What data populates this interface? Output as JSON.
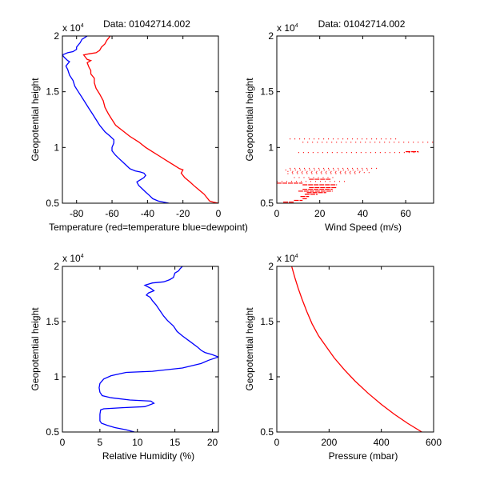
{
  "figure": {
    "background": "#ffffff",
    "colors": {
      "temperature": "#ff0000",
      "dewpoint": "#0000ff",
      "wind": "#ff0000",
      "humidity": "#0000ff",
      "pressure": "#ff0000"
    }
  },
  "chart_data": [
    {
      "id": "temperature",
      "type": "line",
      "title": "Data: 01042714.002",
      "xlabel": "Temperature (red=temperature blue=dewpoint)",
      "ylabel": "Geopotential height",
      "y_multiplier": "x 10",
      "y_multiplier_exp": "4",
      "xlim": [
        -88,
        0
      ],
      "ylim": [
        0.5,
        2
      ],
      "xticks": [
        -80,
        -60,
        -40,
        -20,
        0
      ],
      "xtick_labels": [
        "-80",
        "-60",
        "-40",
        "-20",
        "0"
      ],
      "yticks": [
        0.5,
        1,
        1.5,
        2
      ],
      "ytick_labels": [
        "0.5",
        "1",
        "1.5",
        "2"
      ],
      "grid": false,
      "series": [
        {
          "name": "temperature",
          "color": "#ff0000",
          "points": [
            [
              0,
              0.5
            ],
            [
              -3,
              0.51
            ],
            [
              -5,
              0.52
            ],
            [
              -6,
              0.54
            ],
            [
              -8,
              0.58
            ],
            [
              -11,
              0.62
            ],
            [
              -14,
              0.66
            ],
            [
              -16,
              0.69
            ],
            [
              -19,
              0.73
            ],
            [
              -21,
              0.77
            ],
            [
              -20,
              0.8
            ],
            [
              -22,
              0.81
            ],
            [
              -25,
              0.84
            ],
            [
              -29,
              0.88
            ],
            [
              -33,
              0.92
            ],
            [
              -37,
              0.96
            ],
            [
              -41,
              1.0
            ],
            [
              -45,
              1.05
            ],
            [
              -50,
              1.1
            ],
            [
              -54,
              1.15
            ],
            [
              -58,
              1.2
            ],
            [
              -60,
              1.25
            ],
            [
              -62,
              1.3
            ],
            [
              -64,
              1.36
            ],
            [
              -65,
              1.42
            ],
            [
              -67,
              1.48
            ],
            [
              -69,
              1.53
            ],
            [
              -70,
              1.58
            ],
            [
              -70,
              1.62
            ],
            [
              -72,
              1.66
            ],
            [
              -72,
              1.69
            ],
            [
              -73,
              1.72
            ],
            [
              -74,
              1.76
            ],
            [
              -72,
              1.78
            ],
            [
              -74,
              1.79
            ],
            [
              -75,
              1.81
            ],
            [
              -76,
              1.83
            ],
            [
              -73,
              1.84
            ],
            [
              -69,
              1.85
            ],
            [
              -67,
              1.87
            ],
            [
              -66,
              1.9
            ],
            [
              -64,
              1.93
            ],
            [
              -63,
              1.96
            ],
            [
              -62,
              1.98
            ],
            [
              -61,
              2.0
            ]
          ]
        },
        {
          "name": "dewpoint",
          "color": "#0000ff",
          "points": [
            [
              -28,
              0.5
            ],
            [
              -31,
              0.51
            ],
            [
              -34,
              0.52
            ],
            [
              -37,
              0.54
            ],
            [
              -39,
              0.57
            ],
            [
              -41,
              0.6
            ],
            [
              -43,
              0.63
            ],
            [
              -45,
              0.66
            ],
            [
              -46,
              0.69
            ],
            [
              -45,
              0.7
            ],
            [
              -42,
              0.73
            ],
            [
              -41,
              0.75
            ],
            [
              -42,
              0.77
            ],
            [
              -44,
              0.78
            ],
            [
              -47,
              0.79
            ],
            [
              -50,
              0.81
            ],
            [
              -52,
              0.84
            ],
            [
              -54,
              0.87
            ],
            [
              -56,
              0.9
            ],
            [
              -58,
              0.93
            ],
            [
              -60,
              0.97
            ],
            [
              -60,
              1.0
            ],
            [
              -59,
              1.04
            ],
            [
              -59,
              1.07
            ],
            [
              -61,
              1.1
            ],
            [
              -64,
              1.14
            ],
            [
              -67,
              1.2
            ],
            [
              -69,
              1.25
            ],
            [
              -71,
              1.3
            ],
            [
              -73,
              1.35
            ],
            [
              -75,
              1.4
            ],
            [
              -77,
              1.45
            ],
            [
              -79,
              1.5
            ],
            [
              -81,
              1.55
            ],
            [
              -82,
              1.6
            ],
            [
              -84,
              1.65
            ],
            [
              -85,
              1.7
            ],
            [
              -86,
              1.73
            ],
            [
              -85,
              1.75
            ],
            [
              -84,
              1.77
            ],
            [
              -85,
              1.78
            ],
            [
              -87,
              1.81
            ],
            [
              -88,
              1.83
            ],
            [
              -85,
              1.85
            ],
            [
              -82,
              1.86
            ],
            [
              -80,
              1.88
            ],
            [
              -80,
              1.9
            ],
            [
              -78,
              1.94
            ],
            [
              -77,
              1.97
            ],
            [
              -75,
              1.99
            ],
            [
              -74,
              2.0
            ]
          ]
        }
      ]
    },
    {
      "id": "wind",
      "type": "scatter",
      "title": "Data: 01042714.002",
      "xlabel": "Wind Speed (m/s)",
      "ylabel": "Geopotential height",
      "y_multiplier": "x 10",
      "y_multiplier_exp": "4",
      "xlim": [
        0,
        73
      ],
      "ylim": [
        0.5,
        2
      ],
      "xticks": [
        0,
        20,
        40,
        60
      ],
      "xtick_labels": [
        "0",
        "20",
        "40",
        "60"
      ],
      "yticks": [
        0.5,
        1,
        1.5,
        2
      ],
      "ytick_labels": [
        "0.5",
        "1",
        "1.5",
        "2"
      ],
      "grid": false,
      "series": [
        {
          "name": "wind-speed",
          "color": "#ff0000",
          "segments": [
            [
              6,
              57,
              1.077
            ],
            [
              12,
              73,
              1.047
            ],
            [
              10,
              66,
              0.955
            ],
            [
              60,
              66,
              0.962
            ],
            [
              6,
              48,
              0.812
            ],
            [
              4,
              44,
              0.798
            ],
            [
              5,
              40,
              0.785
            ],
            [
              7,
              44,
              0.775
            ],
            [
              5,
              38,
              0.765
            ],
            [
              8,
              28,
              0.73
            ],
            [
              15,
              25,
              0.715
            ],
            [
              0,
              32,
              0.695
            ],
            [
              0,
              12,
              0.68
            ],
            [
              12,
              28,
              0.665
            ],
            [
              15,
              28,
              0.64
            ],
            [
              12,
              26,
              0.625
            ],
            [
              10,
              26,
              0.608
            ],
            [
              14,
              23,
              0.595
            ],
            [
              13,
              19,
              0.58
            ],
            [
              11,
              15,
              0.56
            ],
            [
              12,
              14,
              0.54
            ],
            [
              8,
              12,
              0.525
            ],
            [
              3,
              8,
              0.51
            ]
          ]
        }
      ]
    },
    {
      "id": "humidity",
      "type": "line",
      "title": "",
      "xlabel": "Relative Humidity (%)",
      "ylabel": "Geopotential height",
      "y_multiplier": "x 10",
      "y_multiplier_exp": "4",
      "xlim": [
        0,
        20.8
      ],
      "ylim": [
        0.5,
        2
      ],
      "xticks": [
        0,
        5,
        10,
        15,
        20
      ],
      "xtick_labels": [
        "0",
        "5",
        "10",
        "15",
        "20"
      ],
      "yticks": [
        0.5,
        1,
        1.5,
        2
      ],
      "ytick_labels": [
        "0.5",
        "1",
        "1.5",
        "2"
      ],
      "grid": false,
      "series": [
        {
          "name": "relative-humidity",
          "color": "#0000ff",
          "points": [
            [
              9.6,
              0.5
            ],
            [
              8.5,
              0.52
            ],
            [
              7,
              0.54
            ],
            [
              6,
              0.56
            ],
            [
              5.2,
              0.58
            ],
            [
              5,
              0.6
            ],
            [
              5,
              0.62
            ],
            [
              5,
              0.66
            ],
            [
              5.1,
              0.7
            ],
            [
              5.5,
              0.71
            ],
            [
              8,
              0.72
            ],
            [
              11,
              0.73
            ],
            [
              12.2,
              0.76
            ],
            [
              11.8,
              0.78
            ],
            [
              9,
              0.79
            ],
            [
              6.5,
              0.81
            ],
            [
              5.3,
              0.83
            ],
            [
              5,
              0.86
            ],
            [
              4.9,
              0.9
            ],
            [
              5,
              0.94
            ],
            [
              5.5,
              0.98
            ],
            [
              6.5,
              1.01
            ],
            [
              8.5,
              1.04
            ],
            [
              12,
              1.05
            ],
            [
              16,
              1.08
            ],
            [
              18.5,
              1.12
            ],
            [
              19.5,
              1.15
            ],
            [
              20.8,
              1.18
            ],
            [
              20,
              1.2
            ],
            [
              19,
              1.22
            ],
            [
              18.5,
              1.24
            ],
            [
              18,
              1.27
            ],
            [
              17,
              1.32
            ],
            [
              16,
              1.37
            ],
            [
              15.3,
              1.41
            ],
            [
              14.8,
              1.46
            ],
            [
              14,
              1.51
            ],
            [
              13.5,
              1.55
            ],
            [
              13,
              1.6
            ],
            [
              12.5,
              1.65
            ],
            [
              12,
              1.69
            ],
            [
              11.7,
              1.72
            ],
            [
              11.2,
              1.74
            ],
            [
              11.5,
              1.76
            ],
            [
              12.2,
              1.78
            ],
            [
              11.8,
              1.8
            ],
            [
              11,
              1.83
            ],
            [
              12,
              1.85
            ],
            [
              13.5,
              1.86
            ],
            [
              14.3,
              1.88
            ],
            [
              14.8,
              1.9
            ],
            [
              15,
              1.94
            ],
            [
              15.5,
              1.96
            ],
            [
              15.7,
              1.98
            ],
            [
              16,
              2.0
            ]
          ]
        }
      ]
    },
    {
      "id": "pressure",
      "type": "line",
      "title": "",
      "xlabel": "Pressure (mbar)",
      "ylabel": "Geopotential height",
      "y_multiplier": "x 10",
      "y_multiplier_exp": "4",
      "xlim": [
        0,
        600
      ],
      "ylim": [
        0.5,
        2
      ],
      "xticks": [
        0,
        200,
        400,
        600
      ],
      "xtick_labels": [
        "0",
        "200",
        "400",
        "600"
      ],
      "yticks": [
        0.5,
        1,
        1.5,
        2
      ],
      "ytick_labels": [
        "0.5",
        "1",
        "1.5",
        "2"
      ],
      "grid": false,
      "series": [
        {
          "name": "pressure",
          "color": "#ff0000",
          "points": [
            [
              555,
              0.5
            ],
            [
              500,
              0.58
            ],
            [
              450,
              0.66
            ],
            [
              400,
              0.75
            ],
            [
              350,
              0.85
            ],
            [
              300,
              0.96
            ],
            [
              260,
              1.06
            ],
            [
              220,
              1.17
            ],
            [
              190,
              1.27
            ],
            [
              160,
              1.37
            ],
            [
              135,
              1.48
            ],
            [
              115,
              1.59
            ],
            [
              97,
              1.7
            ],
            [
              82,
              1.8
            ],
            [
              69,
              1.9
            ],
            [
              57,
              2.0
            ]
          ]
        }
      ]
    }
  ]
}
